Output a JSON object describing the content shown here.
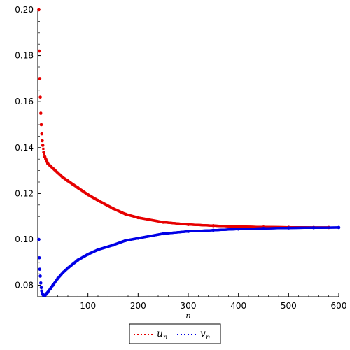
{
  "chart_data": {
    "type": "scatter",
    "title": "",
    "xlabel": "n",
    "ylabel": "",
    "xlim": [
      0,
      600
    ],
    "ylim": [
      0.075,
      0.2
    ],
    "x_ticks": [
      100,
      200,
      300,
      400,
      500,
      600
    ],
    "x_tick_labels": [
      "100",
      "200",
      "300",
      "400",
      "500",
      "600"
    ],
    "y_ticks": [
      0.08,
      0.1,
      0.12,
      0.14,
      0.16,
      0.18,
      0.2
    ],
    "y_tick_labels": [
      "0.08",
      "0.10",
      "0.12",
      "0.14",
      "0.16",
      "0.18",
      "0.20"
    ],
    "grid": false,
    "legend_position": "bottom-center",
    "series": [
      {
        "name": "u",
        "name_subscript": "n",
        "color": "#e60000",
        "style": "dotted-points",
        "x": [
          2,
          3,
          4,
          5,
          6,
          7,
          8,
          9,
          10,
          12,
          14,
          16,
          18,
          20,
          25,
          30,
          40,
          50,
          60,
          70,
          80,
          100,
          120,
          150,
          175,
          200,
          250,
          300,
          350,
          400,
          450,
          500,
          550,
          580
        ],
        "y": [
          0.2,
          0.182,
          0.17,
          0.162,
          0.155,
          0.15,
          0.146,
          0.143,
          0.141,
          0.138,
          0.136,
          0.135,
          0.134,
          0.133,
          0.132,
          0.131,
          0.129,
          0.127,
          0.1255,
          0.124,
          0.1225,
          0.1195,
          0.117,
          0.1135,
          0.111,
          0.1095,
          0.1075,
          0.1065,
          0.106,
          0.1056,
          0.1054,
          0.1053,
          0.1052,
          0.1052
        ]
      },
      {
        "name": "v",
        "name_subscript": "n",
        "color": "#0000e6",
        "style": "dotted-points",
        "x": [
          2,
          3,
          4,
          5,
          6,
          7,
          8,
          10,
          12,
          14,
          16,
          18,
          20,
          25,
          30,
          40,
          50,
          60,
          80,
          100,
          120,
          150,
          175,
          200,
          250,
          300,
          350,
          400,
          450,
          500,
          550,
          600
        ],
        "y": [
          0.1,
          0.092,
          0.087,
          0.084,
          0.081,
          0.079,
          0.0775,
          0.076,
          0.0755,
          0.0755,
          0.076,
          0.0765,
          0.077,
          0.0785,
          0.08,
          0.083,
          0.0855,
          0.0875,
          0.091,
          0.0935,
          0.0955,
          0.0975,
          0.0995,
          0.1005,
          0.1025,
          0.1035,
          0.104,
          0.1045,
          0.1048,
          0.105,
          0.1051,
          0.1052
        ]
      }
    ]
  }
}
